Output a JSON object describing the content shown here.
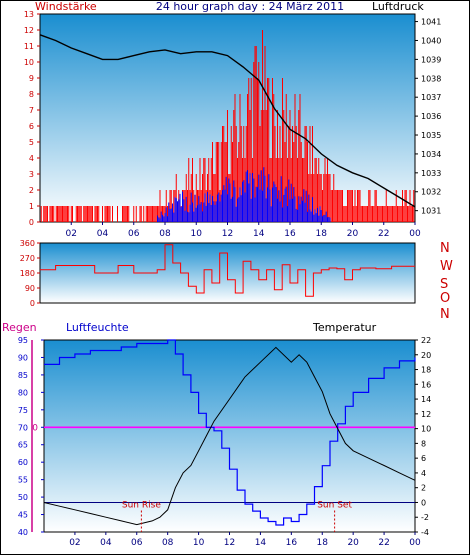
{
  "header": {
    "left": "Windstärke",
    "center": "24 hour graph day : 24 März 2011",
    "right": "Luftdruck"
  },
  "direction_labels": [
    "N",
    "W",
    "S",
    "O",
    "N"
  ],
  "bottom_header": {
    "left_rain": "Regen",
    "left_humidity": "Luftfeuchte",
    "right": "Temperatur"
  },
  "sun": {
    "rise_label": "Sun Rise",
    "set_label": "Sun Set",
    "rise_hour": 6.3,
    "set_hour": 18.8
  },
  "colors": {
    "wind_text": "#cc0000",
    "pressure": "#000000",
    "wind_gust": "#ff0000",
    "wind_avg": "#0000ff",
    "direction": "#ff0000",
    "humidity": "#0000ff",
    "temperature": "#000000",
    "rain": "#ff00ff",
    "rain_label": "#cc0088",
    "sky_top": "#1a8ed0",
    "sky_bottom": "#ffffff"
  },
  "chart_data": [
    {
      "type": "line",
      "name": "wind-and-pressure",
      "xlim": [
        0,
        24
      ],
      "x_ticks": [
        "02",
        "04",
        "06",
        "08",
        "10",
        "12",
        "14",
        "16",
        "18",
        "20",
        "22",
        "00"
      ],
      "left_ticks": [
        "0",
        "1",
        "2",
        "3",
        "4",
        "5",
        "6",
        "7",
        "8",
        "9",
        "10",
        "11",
        "12",
        "13"
      ],
      "left_ylim": [
        0,
        13
      ],
      "right_ticks": [
        "1031",
        "1032",
        "1033",
        "1034",
        "1035",
        "1036",
        "1037",
        "1038",
        "1039",
        "1040",
        "1041"
      ],
      "right_ylim": [
        1030.4,
        1041.4
      ],
      "pressure": {
        "x": [
          0,
          1,
          2,
          3,
          4,
          5,
          6,
          7,
          8,
          9,
          10,
          11,
          12,
          13,
          14,
          15,
          16,
          17,
          18,
          19,
          20,
          21,
          22,
          23,
          24
        ],
        "y": [
          1040.3,
          1040.0,
          1039.6,
          1039.3,
          1039.0,
          1039.0,
          1039.2,
          1039.4,
          1039.5,
          1039.3,
          1039.4,
          1039.4,
          1039.2,
          1038.6,
          1037.9,
          1036.4,
          1035.3,
          1034.8,
          1034.0,
          1033.4,
          1033.0,
          1032.7,
          1032.2,
          1031.7,
          1031.2
        ]
      },
      "gust_max": {
        "x": [
          0,
          1,
          2,
          3,
          4,
          5,
          6,
          7,
          8,
          9,
          10,
          11,
          12,
          13,
          14,
          15,
          16,
          17,
          18,
          19,
          20,
          21,
          22,
          23,
          24
        ],
        "y": [
          1,
          1,
          1,
          1,
          1,
          1,
          1,
          1,
          2,
          3,
          4,
          5,
          7,
          9,
          13,
          9,
          9,
          7,
          5,
          3,
          2,
          2,
          2,
          2,
          2
        ]
      },
      "avg_max": {
        "x": [
          0,
          1,
          2,
          3,
          4,
          5,
          6,
          7,
          8,
          9,
          10,
          11,
          12,
          13,
          14,
          15,
          16,
          17,
          18,
          19,
          20,
          21,
          22,
          23,
          24
        ],
        "y": [
          0,
          0,
          0,
          0,
          0,
          0,
          0,
          0,
          1,
          2,
          2,
          2,
          3,
          3,
          4,
          3,
          3,
          2,
          1,
          0,
          0,
          0,
          0,
          0,
          0
        ]
      }
    },
    {
      "type": "line",
      "name": "wind-direction",
      "xlim": [
        0,
        24
      ],
      "y_ticks": [
        "0",
        "90",
        "180",
        "270",
        "360"
      ],
      "ylim": [
        0,
        360
      ],
      "x": [
        0,
        0.5,
        1,
        1.5,
        2,
        2.5,
        3,
        3.5,
        4,
        4.5,
        5,
        5.5,
        6,
        6.5,
        7,
        7.5,
        8,
        8.5,
        9,
        9.5,
        10,
        10.5,
        11,
        11.5,
        12,
        12.5,
        13,
        13.5,
        14,
        14.5,
        15,
        15.5,
        16,
        16.5,
        17,
        17.5,
        18,
        18.5,
        19,
        19.5,
        20,
        20.5,
        21,
        21.5,
        22,
        22.5,
        23,
        23.5,
        24
      ],
      "y": [
        200,
        200,
        225,
        225,
        225,
        225,
        225,
        180,
        180,
        180,
        225,
        225,
        180,
        180,
        180,
        200,
        350,
        240,
        180,
        100,
        60,
        200,
        120,
        300,
        140,
        60,
        250,
        200,
        140,
        200,
        80,
        230,
        120,
        200,
        40,
        180,
        200,
        210,
        205,
        140,
        200,
        210,
        210,
        205,
        205,
        220,
        220,
        220,
        220
      ]
    },
    {
      "type": "line",
      "name": "humidity-temperature-rain",
      "xlim": [
        0,
        24
      ],
      "x_ticks": [
        "02",
        "04",
        "06",
        "08",
        "10",
        "12",
        "14",
        "16",
        "18",
        "20",
        "22",
        "00"
      ],
      "left_ticks": [
        "40",
        "45",
        "50",
        "55",
        "60",
        "65",
        "70",
        "75",
        "80",
        "85",
        "90",
        "95"
      ],
      "left_ylim": [
        40,
        95
      ],
      "right_ticks": [
        "-4",
        "-2",
        "0",
        "2",
        "4",
        "6",
        "8",
        "10",
        "12",
        "14",
        "16",
        "18",
        "20",
        "22"
      ],
      "right_ylim": [
        -4,
        22
      ],
      "rain_label": "0",
      "humidity": {
        "x": [
          0,
          1,
          2,
          3,
          4,
          5,
          6,
          7,
          8,
          8.5,
          9,
          9.5,
          10,
          10.5,
          11,
          11.5,
          12,
          12.5,
          13,
          13.5,
          14,
          14.5,
          15,
          15.5,
          16,
          16.5,
          17,
          17.5,
          18,
          18.5,
          19,
          19.5,
          20,
          21,
          22,
          23,
          24
        ],
        "y": [
          88,
          90,
          91,
          92,
          92,
          93,
          94,
          94,
          95,
          91,
          85,
          80,
          74,
          70,
          69,
          64,
          58,
          52,
          48,
          46,
          44,
          43,
          42,
          44,
          43,
          45,
          48,
          53,
          59,
          66,
          71,
          76,
          80,
          84,
          87,
          89,
          90
        ]
      },
      "temperature": {
        "x": [
          0,
          1,
          2,
          3,
          4,
          5,
          6,
          7,
          7.5,
          8,
          8.5,
          9,
          9.5,
          10,
          10.5,
          11,
          12,
          13,
          14,
          15,
          16,
          16.5,
          17,
          17.5,
          18,
          18.5,
          19,
          19.5,
          20,
          21,
          22,
          23,
          24
        ],
        "y": [
          0,
          -0.5,
          -1,
          -1.5,
          -2,
          -2.5,
          -3,
          -2.5,
          -2,
          -1,
          2,
          4,
          5,
          7,
          9,
          11,
          14,
          17,
          19,
          21,
          19,
          20,
          19,
          17,
          15,
          12,
          10,
          8,
          7,
          6,
          5,
          4,
          3
        ]
      }
    }
  ]
}
